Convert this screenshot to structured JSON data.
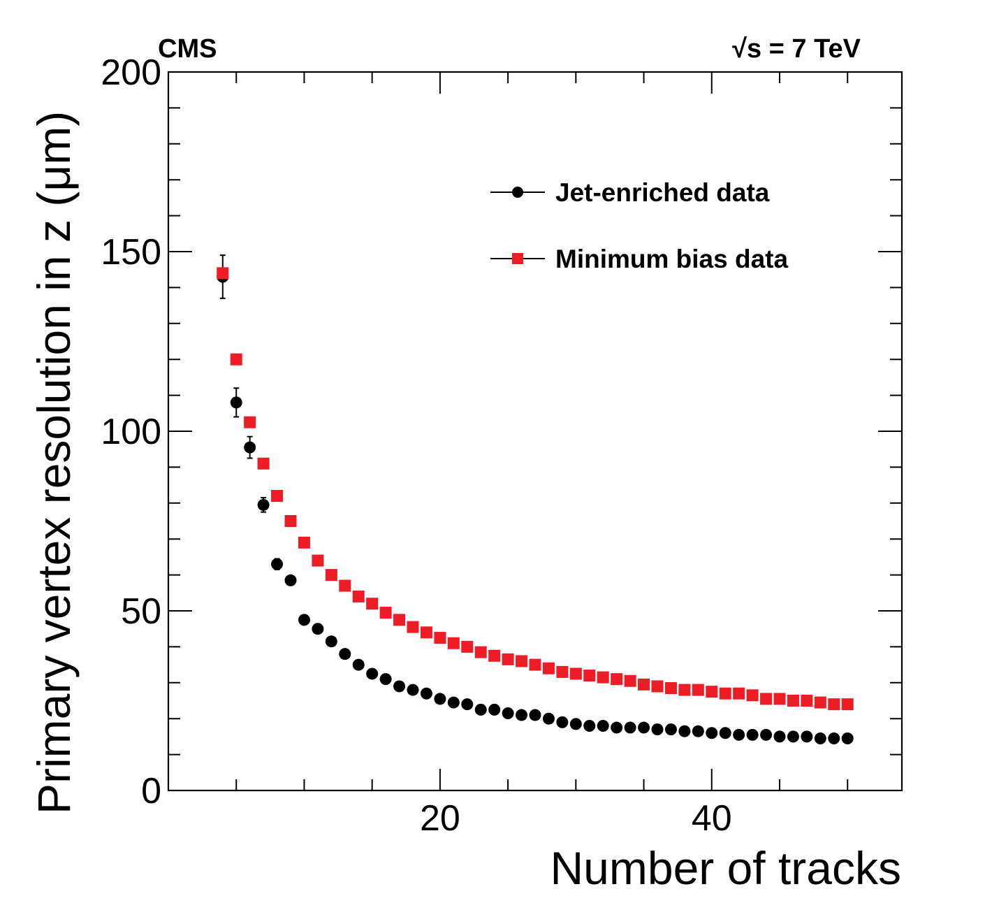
{
  "chart_data": {
    "type": "scatter",
    "experiment_label": "CMS",
    "energy_label": "s = 7 TeV",
    "energy_radical": "√",
    "xlabel": "Number of tracks",
    "ylabel": "Primary vertex resolution in z (μm)",
    "xlim": [
      0,
      54
    ],
    "ylim": [
      0,
      200
    ],
    "x_ticks": [
      20,
      40
    ],
    "x_tick_labels": [
      "20",
      "40"
    ],
    "y_ticks": [
      0,
      50,
      100,
      150,
      200
    ],
    "y_tick_labels": [
      "0",
      "50",
      "100",
      "150",
      "200"
    ],
    "grid": false,
    "legend_position": "upper-right",
    "series": [
      {
        "name": "Jet-enriched data",
        "marker": "circle",
        "color": "#000000",
        "x": [
          4,
          5,
          6,
          7,
          8,
          9,
          10,
          11,
          12,
          13,
          14,
          15,
          16,
          17,
          18,
          19,
          20,
          21,
          22,
          23,
          24,
          25,
          26,
          27,
          28,
          29,
          30,
          31,
          32,
          33,
          34,
          35,
          36,
          37,
          38,
          39,
          40,
          41,
          42,
          43,
          44,
          45,
          46,
          47,
          48,
          49,
          50
        ],
        "y": [
          143,
          108,
          95.5,
          79.5,
          63,
          58.5,
          47.5,
          45,
          41.5,
          38,
          35,
          32.5,
          31,
          29,
          28,
          27,
          25.5,
          24.5,
          24,
          22.5,
          22.5,
          21.5,
          21,
          21,
          20,
          19,
          18.5,
          18,
          18,
          17.5,
          17.5,
          17.5,
          17,
          17,
          16.5,
          16.5,
          16,
          16,
          15.5,
          15.5,
          15.5,
          15,
          15,
          15,
          14.5,
          14.5,
          14.5
        ],
        "errors": [
          6,
          4,
          3,
          2,
          1.5,
          1.2,
          1,
          0.8,
          0.7,
          0.6,
          0.5,
          0.5,
          0.5,
          0.5,
          0.5,
          0.5,
          0.5,
          0.5,
          0.5,
          0.5,
          0.5,
          0.5,
          0.5,
          0.5,
          0.5,
          0.5,
          0.5,
          0.5,
          0.5,
          0.5,
          0.5,
          0.5,
          0.5,
          0.5,
          0.5,
          0.5,
          0.5,
          0.5,
          0.5,
          0.5,
          0.5,
          0.5,
          0.5,
          0.5,
          0.5,
          0.5,
          0.5
        ]
      },
      {
        "name": "Minimum bias data",
        "marker": "square",
        "color": "#ee1c25",
        "x": [
          4,
          5,
          6,
          7,
          8,
          9,
          10,
          11,
          12,
          13,
          14,
          15,
          16,
          17,
          18,
          19,
          20,
          21,
          22,
          23,
          24,
          25,
          26,
          27,
          28,
          29,
          30,
          31,
          32,
          33,
          34,
          35,
          36,
          37,
          38,
          39,
          40,
          41,
          42,
          43,
          44,
          45,
          46,
          47,
          48,
          49,
          50
        ],
        "y": [
          144,
          120,
          102.5,
          91,
          82,
          75,
          69,
          64,
          60,
          57,
          54,
          52,
          49.5,
          47.5,
          45.5,
          44,
          42.5,
          41,
          40,
          38.5,
          37.5,
          36.5,
          36,
          35,
          34,
          33,
          32.5,
          32,
          31.5,
          31,
          30.5,
          29.5,
          29,
          28.5,
          28,
          28,
          27.5,
          27,
          27,
          26.5,
          25.5,
          25.5,
          25,
          25,
          24.5,
          24,
          24
        ],
        "errors": [
          1,
          0.5,
          0.4,
          0.3,
          0.3,
          0.3,
          0.3,
          0.3,
          0.3,
          0.3,
          0.3,
          0.3,
          0.3,
          0.3,
          0.3,
          0.3,
          0.3,
          0.3,
          0.3,
          0.3,
          0.3,
          0.3,
          0.3,
          0.3,
          0.3,
          0.3,
          0.3,
          0.3,
          0.3,
          0.3,
          0.3,
          0.3,
          0.3,
          0.3,
          0.3,
          0.3,
          0.3,
          0.3,
          0.3,
          0.3,
          0.3,
          0.3,
          0.3,
          0.3,
          0.3,
          0.3,
          0.3
        ]
      }
    ]
  }
}
